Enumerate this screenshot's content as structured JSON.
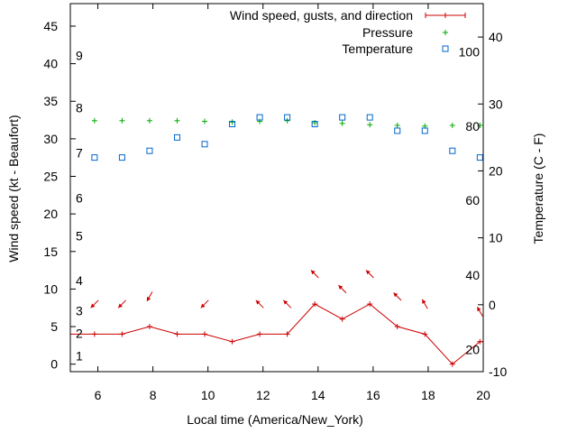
{
  "chart_data": {
    "type": "line",
    "xlabel": "Local time (America/New_York)",
    "ylabel_left": "Wind speed (kt - Beaufort)",
    "ylabel_right": "Temperature (C - F)",
    "x_range": [
      5,
      20
    ],
    "y_left_range": [
      -1,
      48
    ],
    "y_right_range": [
      -10,
      45
    ],
    "x_ticks": [
      "6",
      "8",
      "10",
      "12",
      "14",
      "16",
      "18",
      "20"
    ],
    "y_left_ticks": [
      "0",
      "5",
      "10",
      "15",
      "20",
      "25",
      "30",
      "35",
      "40",
      "45"
    ],
    "y_right_ticks": [
      "-10",
      "0",
      "10",
      "20",
      "30",
      "40"
    ],
    "beaufort_labels": [
      {
        "label": "1",
        "kt": 1.1
      },
      {
        "label": "2",
        "kt": 4.1
      },
      {
        "label": "3",
        "kt": 7.1
      },
      {
        "label": "4",
        "kt": 11.1
      },
      {
        "label": "5",
        "kt": 17.1
      },
      {
        "label": "6",
        "kt": 22.1
      },
      {
        "label": "7",
        "kt": 28.1
      },
      {
        "label": "8",
        "kt": 34.1
      },
      {
        "label": "9",
        "kt": 41.1
      }
    ],
    "fahrenheit_labels": [
      {
        "label": "20",
        "c": -6.7
      },
      {
        "label": "40",
        "c": 4.4
      },
      {
        "label": "60",
        "c": 15.6
      },
      {
        "label": "80",
        "c": 26.7
      },
      {
        "label": "100",
        "c": 37.8
      }
    ],
    "legend": {
      "placement": "top-right",
      "entries": [
        "Wind speed, gusts, and direction",
        "Pressure",
        "Temperature"
      ]
    },
    "colors": {
      "wind": "#cc0000",
      "pressure": "#00aa00",
      "temperature": "#0066cc"
    },
    "series": [
      {
        "name": "Wind speed, gusts, and direction",
        "axis": "left",
        "x": [
          5,
          5.88,
          6.88,
          7.88,
          8.88,
          9.88,
          10.88,
          11.88,
          12.88,
          13.88,
          14.88,
          15.88,
          16.88,
          17.88,
          18.88,
          19.88,
          20
        ],
        "y": [
          4,
          4,
          4,
          5,
          4,
          4,
          3,
          4,
          4,
          8,
          6,
          8,
          5,
          4,
          0,
          3,
          3
        ]
      },
      {
        "name": "Pressure",
        "axis": "right",
        "x": [
          5.88,
          6.88,
          7.88,
          8.88,
          9.88,
          10.88,
          11.88,
          12.88,
          13.88,
          14.88,
          15.88,
          16.88,
          17.88,
          18.88,
          19.88
        ],
        "y": [
          27.5,
          27.5,
          27.5,
          27.5,
          27.4,
          27.3,
          27.4,
          27.5,
          27.2,
          27.1,
          26.9,
          26.8,
          26.7,
          26.8,
          26.8
        ]
      },
      {
        "name": "Temperature",
        "axis": "right",
        "x": [
          5.88,
          6.88,
          7.88,
          8.88,
          9.88,
          10.88,
          11.88,
          12.88,
          13.88,
          14.88,
          15.88,
          16.88,
          17.88,
          18.88,
          19.88
        ],
        "y": [
          22,
          22,
          23,
          25,
          24,
          27,
          28,
          28,
          27,
          28,
          28,
          26,
          26,
          23,
          22
        ]
      }
    ],
    "wind_direction_deg": [
      45,
      45,
      60,
      45,
      null,
      315,
      315,
      315,
      315,
      315,
      315,
      300,
      300,
      null,
      45
    ],
    "wind_arrow_x": [
      5.88,
      6.88,
      7.88,
      9.88,
      null,
      11.88,
      12.88,
      13.88,
      14.88,
      15.88,
      16.88,
      17.88,
      19.88,
      null,
      null
    ]
  }
}
